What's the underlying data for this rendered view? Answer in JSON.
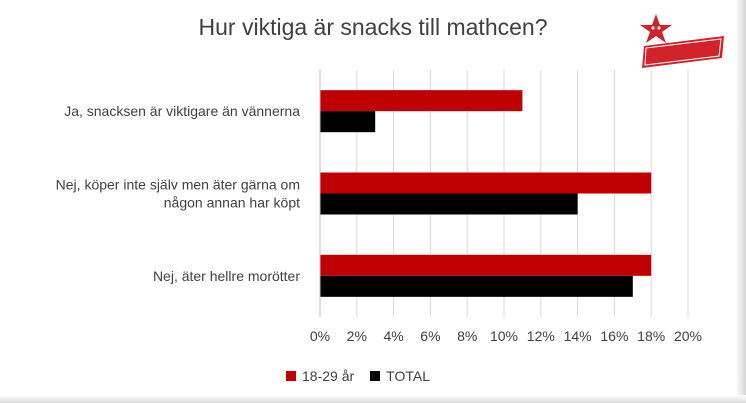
{
  "chart_data": {
    "type": "bar",
    "orientation": "horizontal",
    "title": "Hur viktiga är snacks till mathcen?",
    "categories": [
      [
        "Ja, snacksen är viktigare än vännerna"
      ],
      [
        "Nej, köper inte själv men äter gärna om",
        "någon annan har köpt"
      ],
      [
        "Nej, äter hellre morötter"
      ]
    ],
    "series": [
      {
        "name": "18-29 år",
        "color": "#c00000",
        "values": [
          11,
          18,
          18
        ]
      },
      {
        "name": "TOTAL",
        "color": "#000000",
        "values": [
          3,
          14,
          17
        ]
      }
    ],
    "xlim": [
      0,
      20
    ],
    "xticks": [
      "0%",
      "2%",
      "4%",
      "6%",
      "8%",
      "10%",
      "12%",
      "14%",
      "16%",
      "18%",
      "20%"
    ],
    "grid": true,
    "legend_position": "bottom"
  },
  "logo": {
    "text": "Estrella",
    "color": "#d2232a",
    "icon": "star-icon"
  }
}
